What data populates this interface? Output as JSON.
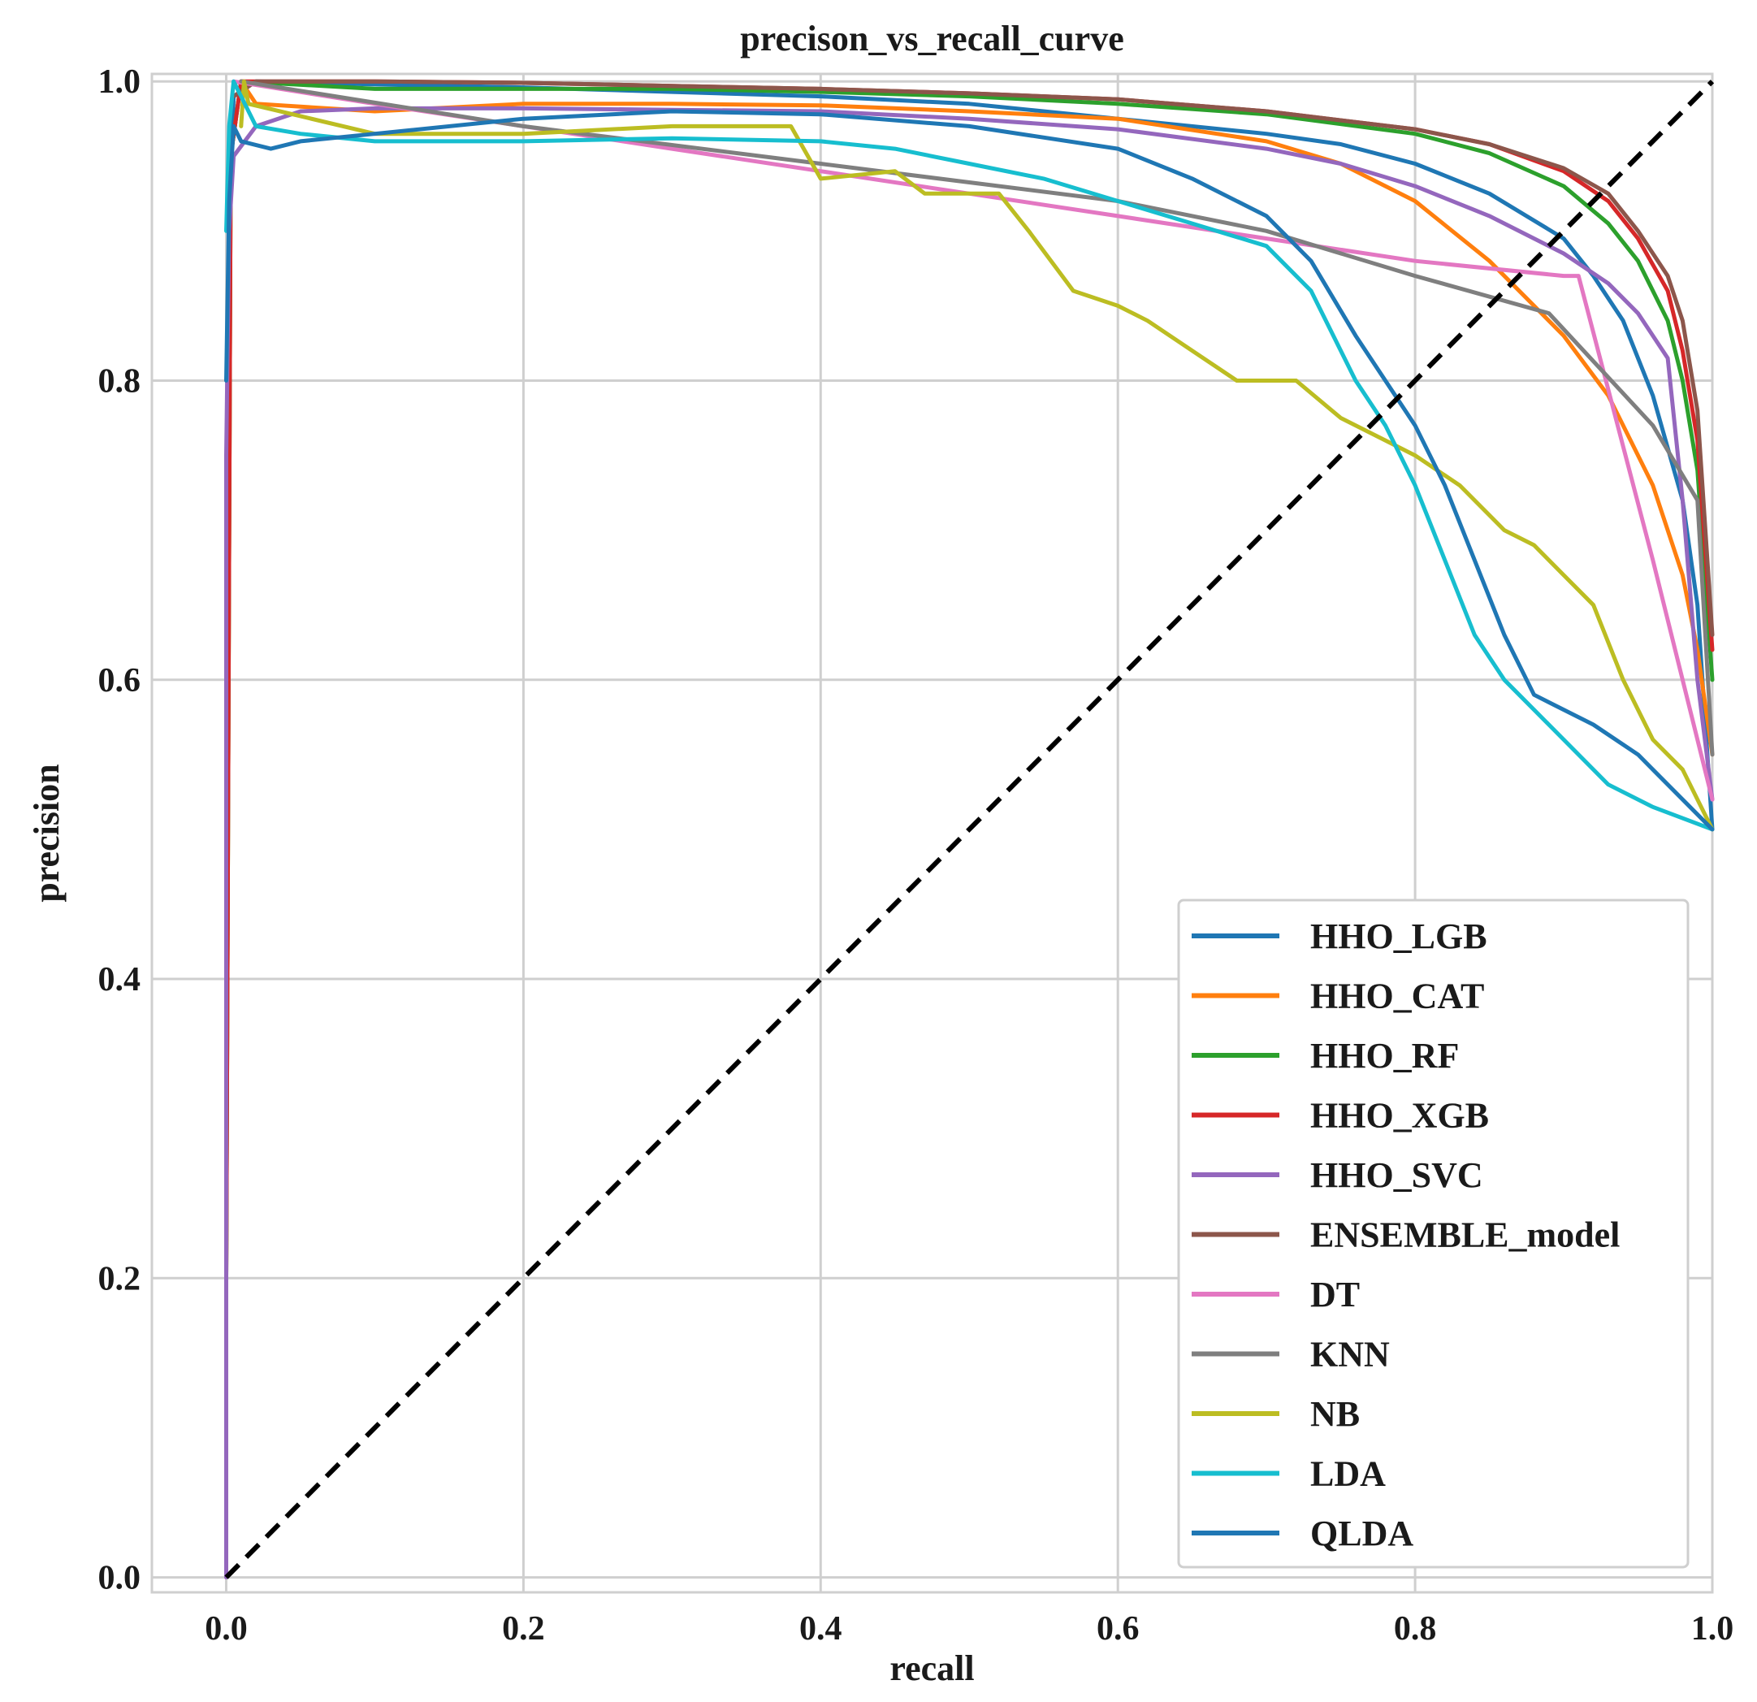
{
  "chart_data": {
    "type": "line",
    "title": "precison_vs_recall_curve",
    "xlabel": "recall",
    "ylabel": "precision",
    "xlim": [
      -0.05,
      1.0
    ],
    "ylim": [
      -0.01,
      1.005
    ],
    "xticks": [
      0.0,
      0.2,
      0.4,
      0.6,
      0.8,
      1.0
    ],
    "xtick_labels": [
      "0.0",
      "0.2",
      "0.4",
      "0.6",
      "0.8",
      "1.0"
    ],
    "yticks": [
      0.0,
      0.2,
      0.4,
      0.6,
      0.8,
      1.0
    ],
    "ytick_labels": [
      "0.0",
      "0.2",
      "0.4",
      "0.6",
      "0.8",
      "1.0"
    ],
    "grid": true,
    "legend_position": "lower-right",
    "reference_line": {
      "style": "dashed",
      "color": "#000000",
      "points": [
        [
          0,
          0
        ],
        [
          1,
          1
        ]
      ]
    },
    "series": [
      {
        "name": "HHO_LGB",
        "color": "#1f77b4",
        "points": [
          [
            0,
            0.2
          ],
          [
            0.002,
            0.9
          ],
          [
            0.005,
            0.99
          ],
          [
            0.02,
            1.0
          ],
          [
            0.1,
            0.998
          ],
          [
            0.2,
            0.996
          ],
          [
            0.3,
            0.993
          ],
          [
            0.4,
            0.99
          ],
          [
            0.5,
            0.985
          ],
          [
            0.6,
            0.975
          ],
          [
            0.7,
            0.965
          ],
          [
            0.75,
            0.958
          ],
          [
            0.8,
            0.945
          ],
          [
            0.85,
            0.925
          ],
          [
            0.9,
            0.895
          ],
          [
            0.92,
            0.87
          ],
          [
            0.94,
            0.84
          ],
          [
            0.96,
            0.79
          ],
          [
            0.98,
            0.72
          ],
          [
            0.99,
            0.65
          ],
          [
            1.0,
            0.5
          ]
        ]
      },
      {
        "name": "HHO_CAT",
        "color": "#ff7f0e",
        "points": [
          [
            0,
            0.2
          ],
          [
            0.003,
            0.95
          ],
          [
            0.01,
            1.0
          ],
          [
            0.02,
            0.985
          ],
          [
            0.1,
            0.98
          ],
          [
            0.2,
            0.985
          ],
          [
            0.3,
            0.985
          ],
          [
            0.4,
            0.984
          ],
          [
            0.5,
            0.98
          ],
          [
            0.6,
            0.975
          ],
          [
            0.7,
            0.96
          ],
          [
            0.75,
            0.945
          ],
          [
            0.8,
            0.92
          ],
          [
            0.85,
            0.88
          ],
          [
            0.88,
            0.85
          ],
          [
            0.9,
            0.83
          ],
          [
            0.93,
            0.79
          ],
          [
            0.96,
            0.73
          ],
          [
            0.98,
            0.67
          ],
          [
            0.99,
            0.62
          ],
          [
            1.0,
            0.55
          ]
        ]
      },
      {
        "name": "HHO_RF",
        "color": "#2ca02c",
        "points": [
          [
            0,
            0.2
          ],
          [
            0.003,
            0.95
          ],
          [
            0.01,
            1.0
          ],
          [
            0.1,
            0.995
          ],
          [
            0.2,
            0.995
          ],
          [
            0.3,
            0.995
          ],
          [
            0.4,
            0.993
          ],
          [
            0.5,
            0.99
          ],
          [
            0.6,
            0.985
          ],
          [
            0.7,
            0.978
          ],
          [
            0.8,
            0.965
          ],
          [
            0.85,
            0.952
          ],
          [
            0.9,
            0.93
          ],
          [
            0.93,
            0.905
          ],
          [
            0.95,
            0.88
          ],
          [
            0.97,
            0.84
          ],
          [
            0.98,
            0.8
          ],
          [
            0.99,
            0.74
          ],
          [
            1.0,
            0.6
          ]
        ]
      },
      {
        "name": "HHO_XGB",
        "color": "#d62728",
        "points": [
          [
            0,
            0.2
          ],
          [
            0.003,
            0.95
          ],
          [
            0.01,
            1.0
          ],
          [
            0.1,
            1.0
          ],
          [
            0.2,
            0.999
          ],
          [
            0.3,
            0.997
          ],
          [
            0.4,
            0.995
          ],
          [
            0.5,
            0.992
          ],
          [
            0.6,
            0.988
          ],
          [
            0.7,
            0.98
          ],
          [
            0.8,
            0.968
          ],
          [
            0.85,
            0.958
          ],
          [
            0.9,
            0.94
          ],
          [
            0.93,
            0.92
          ],
          [
            0.95,
            0.895
          ],
          [
            0.97,
            0.86
          ],
          [
            0.98,
            0.82
          ],
          [
            0.99,
            0.76
          ],
          [
            1.0,
            0.62
          ]
        ]
      },
      {
        "name": "HHO_SVC",
        "color": "#9467bd",
        "points": [
          [
            0,
            0.0
          ],
          [
            0.0,
            0.75
          ],
          [
            0.002,
            0.9
          ],
          [
            0.005,
            0.95
          ],
          [
            0.02,
            0.97
          ],
          [
            0.05,
            0.98
          ],
          [
            0.1,
            0.982
          ],
          [
            0.2,
            0.982
          ],
          [
            0.3,
            0.981
          ],
          [
            0.4,
            0.98
          ],
          [
            0.5,
            0.975
          ],
          [
            0.6,
            0.968
          ],
          [
            0.7,
            0.955
          ],
          [
            0.75,
            0.945
          ],
          [
            0.8,
            0.93
          ],
          [
            0.85,
            0.91
          ],
          [
            0.9,
            0.885
          ],
          [
            0.93,
            0.865
          ],
          [
            0.95,
            0.845
          ],
          [
            0.97,
            0.815
          ],
          [
            0.98,
            0.72
          ],
          [
            0.99,
            0.6
          ],
          [
            1.0,
            0.52
          ]
        ]
      },
      {
        "name": "ENSEMBLE_model",
        "color": "#8c564b",
        "points": [
          [
            0.005,
            0.99
          ],
          [
            0.02,
            1.0
          ],
          [
            0.1,
            1.0
          ],
          [
            0.2,
            0.999
          ],
          [
            0.3,
            0.997
          ],
          [
            0.4,
            0.995
          ],
          [
            0.5,
            0.992
          ],
          [
            0.6,
            0.988
          ],
          [
            0.7,
            0.98
          ],
          [
            0.8,
            0.968
          ],
          [
            0.85,
            0.958
          ],
          [
            0.9,
            0.942
          ],
          [
            0.93,
            0.925
          ],
          [
            0.95,
            0.9
          ],
          [
            0.97,
            0.87
          ],
          [
            0.98,
            0.84
          ],
          [
            0.99,
            0.78
          ],
          [
            1.0,
            0.63
          ]
        ]
      },
      {
        "name": "DT",
        "color": "#e377c2",
        "points": [
          [
            0.005,
            1.0
          ],
          [
            0.1,
            0.985
          ],
          [
            0.2,
            0.97
          ],
          [
            0.3,
            0.955
          ],
          [
            0.4,
            0.94
          ],
          [
            0.5,
            0.925
          ],
          [
            0.6,
            0.91
          ],
          [
            0.7,
            0.895
          ],
          [
            0.8,
            0.88
          ],
          [
            0.9,
            0.87
          ],
          [
            0.91,
            0.87
          ],
          [
            0.96,
            0.68
          ],
          [
            1.0,
            0.52
          ]
        ]
      },
      {
        "name": "KNN",
        "color": "#7f7f7f",
        "points": [
          [
            0.01,
            1.0
          ],
          [
            0.2,
            0.97
          ],
          [
            0.4,
            0.945
          ],
          [
            0.6,
            0.92
          ],
          [
            0.7,
            0.9
          ],
          [
            0.8,
            0.87
          ],
          [
            0.89,
            0.845
          ],
          [
            0.96,
            0.77
          ],
          [
            0.99,
            0.72
          ],
          [
            1.0,
            0.55
          ]
        ]
      },
      {
        "name": "NB",
        "color": "#bcbd22",
        "points": [
          [
            0.01,
            0.97
          ],
          [
            0.012,
            1.0
          ],
          [
            0.015,
            0.985
          ],
          [
            0.1,
            0.965
          ],
          [
            0.2,
            0.965
          ],
          [
            0.3,
            0.97
          ],
          [
            0.38,
            0.97
          ],
          [
            0.4,
            0.935
          ],
          [
            0.45,
            0.94
          ],
          [
            0.47,
            0.925
          ],
          [
            0.52,
            0.925
          ],
          [
            0.54,
            0.9
          ],
          [
            0.57,
            0.86
          ],
          [
            0.6,
            0.85
          ],
          [
            0.62,
            0.84
          ],
          [
            0.65,
            0.82
          ],
          [
            0.68,
            0.8
          ],
          [
            0.72,
            0.8
          ],
          [
            0.75,
            0.775
          ],
          [
            0.78,
            0.76
          ],
          [
            0.8,
            0.75
          ],
          [
            0.83,
            0.73
          ],
          [
            0.86,
            0.7
          ],
          [
            0.88,
            0.69
          ],
          [
            0.9,
            0.67
          ],
          [
            0.92,
            0.65
          ],
          [
            0.94,
            0.6
          ],
          [
            0.96,
            0.56
          ],
          [
            0.98,
            0.54
          ],
          [
            1.0,
            0.5
          ]
        ]
      },
      {
        "name": "LDA",
        "color": "#17becf",
        "points": [
          [
            0,
            0.9
          ],
          [
            0.002,
            0.97
          ],
          [
            0.005,
            1.0
          ],
          [
            0.01,
            0.99
          ],
          [
            0.02,
            0.97
          ],
          [
            0.05,
            0.965
          ],
          [
            0.1,
            0.96
          ],
          [
            0.2,
            0.96
          ],
          [
            0.3,
            0.962
          ],
          [
            0.4,
            0.96
          ],
          [
            0.45,
            0.955
          ],
          [
            0.5,
            0.945
          ],
          [
            0.55,
            0.935
          ],
          [
            0.6,
            0.92
          ],
          [
            0.65,
            0.905
          ],
          [
            0.7,
            0.89
          ],
          [
            0.73,
            0.86
          ],
          [
            0.76,
            0.8
          ],
          [
            0.78,
            0.77
          ],
          [
            0.8,
            0.73
          ],
          [
            0.82,
            0.68
          ],
          [
            0.84,
            0.63
          ],
          [
            0.86,
            0.6
          ],
          [
            0.88,
            0.58
          ],
          [
            0.9,
            0.56
          ],
          [
            0.93,
            0.53
          ],
          [
            0.96,
            0.515
          ],
          [
            1.0,
            0.5
          ]
        ]
      },
      {
        "name": "QLDA",
        "color": "#1f77b4",
        "points": [
          [
            0,
            0.8
          ],
          [
            0.002,
            0.92
          ],
          [
            0.005,
            0.97
          ],
          [
            0.01,
            0.96
          ],
          [
            0.03,
            0.955
          ],
          [
            0.05,
            0.96
          ],
          [
            0.1,
            0.965
          ],
          [
            0.2,
            0.975
          ],
          [
            0.3,
            0.98
          ],
          [
            0.4,
            0.978
          ],
          [
            0.5,
            0.97
          ],
          [
            0.6,
            0.955
          ],
          [
            0.65,
            0.935
          ],
          [
            0.7,
            0.91
          ],
          [
            0.73,
            0.88
          ],
          [
            0.76,
            0.83
          ],
          [
            0.78,
            0.8
          ],
          [
            0.8,
            0.77
          ],
          [
            0.82,
            0.73
          ],
          [
            0.84,
            0.68
          ],
          [
            0.86,
            0.63
          ],
          [
            0.88,
            0.59
          ],
          [
            0.9,
            0.58
          ],
          [
            0.92,
            0.57
          ],
          [
            0.95,
            0.55
          ],
          [
            1.0,
            0.5
          ]
        ]
      }
    ]
  }
}
